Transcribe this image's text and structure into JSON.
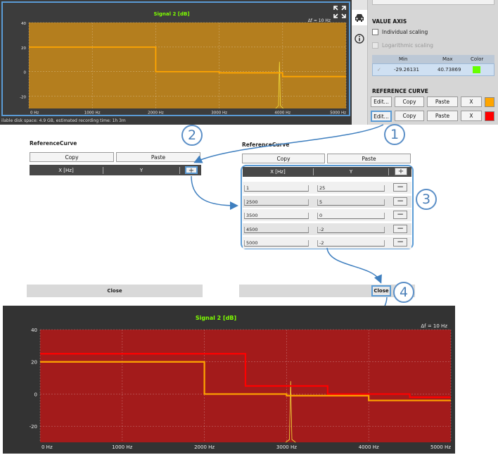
{
  "top_chart": {
    "title": "Signal 2 [dB]",
    "df_label": "Δf = 10 Hz",
    "y_ticks": [
      "40",
      "20",
      "0",
      "-20"
    ],
    "x_ticks": [
      "0 Hz",
      "1000 Hz",
      "2000 Hz",
      "3000 Hz",
      "4000 Hz",
      "5000 Hz"
    ],
    "status": "ilable disk space: 4.9 GB, estimated recording time: 1h 3m"
  },
  "icons": [
    "fullscreen-icon",
    "car-icon",
    "info-icon"
  ],
  "settings": {
    "value_axis_title": "VALUE AXIS",
    "individual_scaling": "Individual scaling",
    "log_scaling": "Logarithmic scaling",
    "col_min": "Min",
    "col_max": "Max",
    "col_color": "Color",
    "min_value": "-29.26131",
    "max_value": "40.73869",
    "axis_color": "#66ff00",
    "ref_title": "REFERENCE CURVE",
    "edit": "Edit...",
    "copy": "Copy",
    "paste": "Paste",
    "x": "X",
    "ref_colors": [
      "#ffa500",
      "#ff0000"
    ]
  },
  "dialog": {
    "title": "ReferenceCurve",
    "copy": "Copy",
    "paste": "Paste",
    "col_x": "X [Hz]",
    "col_y": "Y",
    "plus": "+",
    "minus": "−",
    "close": "Close",
    "rows": [
      {
        "x": "1",
        "y": "25"
      },
      {
        "x": "2500",
        "y": "5"
      },
      {
        "x": "3500",
        "y": "0"
      },
      {
        "x": "4500",
        "y": "-2"
      },
      {
        "x": "5000",
        "y": "-2"
      }
    ]
  },
  "badges": [
    "1",
    "2",
    "3",
    "4"
  ],
  "bottom_chart": {
    "title": "Signal 2 [dB]",
    "df_label": "Δf = 10 Hz",
    "y_ticks": [
      "40",
      "20",
      "0",
      "-20"
    ],
    "x_ticks": [
      "0 Hz",
      "1000 Hz",
      "2000 Hz",
      "3000 Hz",
      "4000 Hz",
      "5000 Hz"
    ]
  },
  "chart_data": [
    {
      "type": "line",
      "title": "Signal 2 [dB]",
      "xlim": [
        0,
        5000
      ],
      "ylim": [
        -30,
        40
      ],
      "series": [
        {
          "color": "#ffa500",
          "x": [
            0,
            2000,
            2000,
            3000,
            3000,
            4000,
            4000,
            5000
          ],
          "y": [
            20,
            20,
            0,
            0,
            -1,
            -1,
            -4,
            -4
          ]
        }
      ]
    },
    {
      "type": "line",
      "title": "Signal 2 [dB]",
      "xlim": [
        0,
        5000
      ],
      "ylim": [
        -30,
        40
      ],
      "series": [
        {
          "color": "#ffa500",
          "x": [
            0,
            2000,
            2000,
            3000,
            3000,
            4000,
            4000,
            5000
          ],
          "y": [
            20,
            20,
            0,
            0,
            -1,
            -1,
            -4,
            -4
          ]
        },
        {
          "color": "#ff0000",
          "x": [
            1,
            2500,
            2500,
            3500,
            3500,
            4500,
            4500,
            5000
          ],
          "y": [
            25,
            25,
            5,
            5,
            0,
            0,
            -2,
            -2
          ]
        }
      ]
    }
  ]
}
